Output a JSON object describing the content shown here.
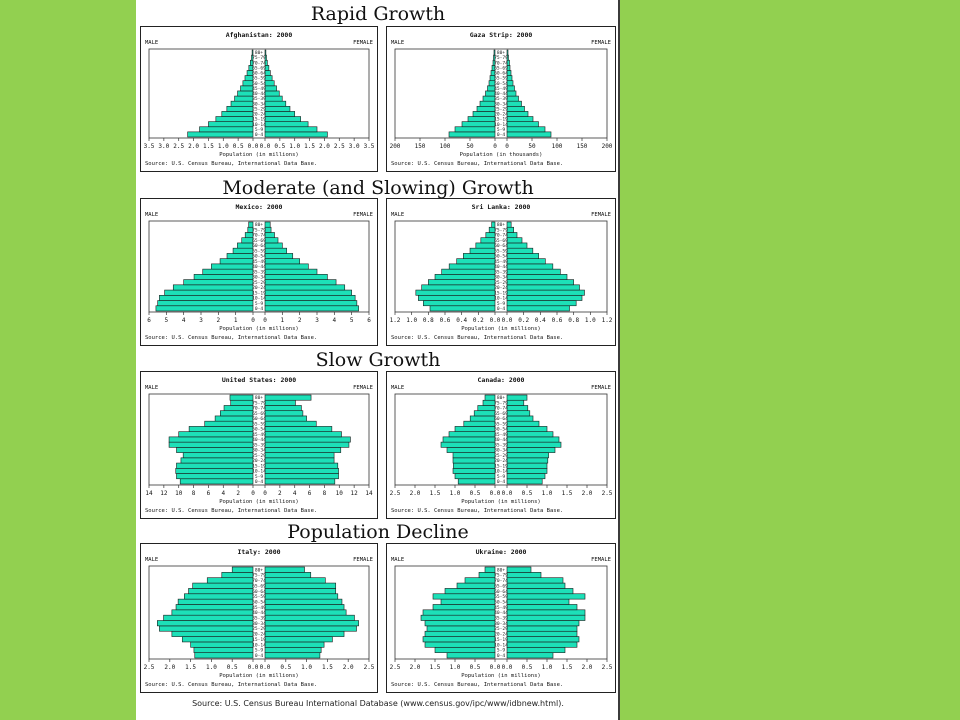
{
  "colors": {
    "background": "#92d050",
    "bar_fill": "#1de0b8",
    "bar_stroke": "#1a1a1a"
  },
  "sections": [
    {
      "title": "Rapid Growth"
    },
    {
      "title": "Moderate (and Slowing) Growth"
    },
    {
      "title": "Slow Growth"
    },
    {
      "title": "Population Decline"
    }
  ],
  "footer": {
    "source": "Source: U.S. Census Bureau International Database (www.census.gov/ipc/www/idbnew.html)."
  },
  "chart_data": [
    {
      "type": "bar",
      "title": "Afghanistan: 2000",
      "left_label": "MALE",
      "right_label": "FEMALE",
      "xlabel": "Population (in millions)",
      "source": "Source: U.S. Census Bureau, International Data Base.",
      "xlim": [
        0,
        3.5
      ],
      "ticks": [
        "3.5",
        "3.0",
        "2.5",
        "2.0",
        "1.5",
        "1.0",
        "0.5",
        "0.0",
        "0.0",
        "0.5",
        "1.0",
        "1.5",
        "2.0",
        "2.5",
        "3.0",
        "3.5"
      ],
      "tick_values": [
        3.5,
        3.0,
        2.5,
        2.0,
        1.5,
        1.0,
        0.5,
        0.0,
        0.0,
        0.5,
        1.0,
        1.5,
        2.0,
        2.5,
        3.0,
        3.5
      ],
      "categories": [
        "0-4",
        "5-9",
        "10-14",
        "15-19",
        "20-24",
        "25-29",
        "30-34",
        "35-39",
        "40-44",
        "45-49",
        "50-54",
        "55-59",
        "60-64",
        "65-69",
        "70-74",
        "75-79",
        "80+"
      ],
      "series": [
        {
          "name": "MALE",
          "values": [
            2.2,
            1.8,
            1.5,
            1.25,
            1.05,
            0.88,
            0.74,
            0.62,
            0.52,
            0.42,
            0.34,
            0.27,
            0.2,
            0.14,
            0.09,
            0.05,
            0.03
          ]
        },
        {
          "name": "FEMALE",
          "values": [
            2.1,
            1.75,
            1.45,
            1.2,
            1.0,
            0.84,
            0.7,
            0.58,
            0.48,
            0.39,
            0.31,
            0.24,
            0.18,
            0.13,
            0.08,
            0.05,
            0.03
          ]
        }
      ]
    },
    {
      "type": "bar",
      "title": "Gaza Strip: 2000",
      "left_label": "MALE",
      "right_label": "FEMALE",
      "xlabel": "Population (in thousands)",
      "source": "Source: U.S. Census Bureau, International Data Base.",
      "xlim": [
        0,
        200
      ],
      "ticks": [
        "200",
        "150",
        "100",
        "50",
        "0",
        "0",
        "50",
        "100",
        "150",
        "200"
      ],
      "tick_values": [
        200,
        150,
        100,
        50,
        0,
        0,
        50,
        100,
        150,
        200
      ],
      "categories": [
        "0-4",
        "5-9",
        "10-14",
        "15-19",
        "20-24",
        "25-29",
        "30-34",
        "35-39",
        "40-44",
        "45-49",
        "50-54",
        "55-59",
        "60-64",
        "65-69",
        "70-74",
        "75-79",
        "80+"
      ],
      "series": [
        {
          "name": "MALE",
          "values": [
            92,
            80,
            66,
            54,
            44,
            36,
            30,
            24,
            19,
            15,
            12,
            10,
            8,
            6,
            4,
            3,
            2
          ]
        },
        {
          "name": "FEMALE",
          "values": [
            88,
            76,
            63,
            52,
            42,
            35,
            29,
            23,
            18,
            15,
            12,
            10,
            8,
            6,
            5,
            3,
            2
          ]
        }
      ]
    },
    {
      "type": "bar",
      "title": "Mexico: 2000",
      "left_label": "MALE",
      "right_label": "FEMALE",
      "xlabel": "Population (in millions)",
      "source": "Source: U.S. Census Bureau, International Data Base.",
      "xlim": [
        0,
        6
      ],
      "ticks": [
        "6",
        "5",
        "4",
        "3",
        "2",
        "1",
        "0",
        "0",
        "1",
        "2",
        "3",
        "4",
        "5",
        "6"
      ],
      "tick_values": [
        6,
        5,
        4,
        3,
        2,
        1,
        0,
        0,
        1,
        2,
        3,
        4,
        5,
        6
      ],
      "categories": [
        "0-4",
        "5-9",
        "10-14",
        "15-19",
        "20-24",
        "25-29",
        "30-34",
        "35-39",
        "40-44",
        "45-49",
        "50-54",
        "55-59",
        "60-64",
        "65-69",
        "70-74",
        "75-79",
        "80+"
      ],
      "series": [
        {
          "name": "MALE",
          "values": [
            5.6,
            5.5,
            5.4,
            5.1,
            4.6,
            4.0,
            3.4,
            2.9,
            2.4,
            1.9,
            1.5,
            1.15,
            0.9,
            0.65,
            0.45,
            0.3,
            0.25
          ]
        },
        {
          "name": "FEMALE",
          "values": [
            5.4,
            5.3,
            5.2,
            5.0,
            4.6,
            4.1,
            3.6,
            3.0,
            2.5,
            2.0,
            1.6,
            1.25,
            1.0,
            0.75,
            0.55,
            0.35,
            0.3
          ]
        }
      ]
    },
    {
      "type": "bar",
      "title": "Sri Lanka: 2000",
      "left_label": "MALE",
      "right_label": "FEMALE",
      "xlabel": "Population (in millions)",
      "source": "Source: U.S. Census Bureau, International Data Base.",
      "xlim": [
        0,
        1.2
      ],
      "ticks": [
        "1.2",
        "1.0",
        "0.8",
        "0.6",
        "0.4",
        "0.2",
        "0.0",
        "0.0",
        "0.2",
        "0.4",
        "0.6",
        "0.8",
        "1.0",
        "1.2"
      ],
      "tick_values": [
        1.2,
        1.0,
        0.8,
        0.6,
        0.4,
        0.2,
        0.0,
        0.0,
        0.2,
        0.4,
        0.6,
        0.8,
        1.0,
        1.2
      ],
      "categories": [
        "0-4",
        "5-9",
        "10-14",
        "15-19",
        "20-24",
        "25-29",
        "30-34",
        "35-39",
        "40-44",
        "45-49",
        "50-54",
        "55-59",
        "60-64",
        "65-69",
        "70-74",
        "75-79",
        "80+"
      ],
      "series": [
        {
          "name": "MALE",
          "values": [
            0.78,
            0.86,
            0.92,
            0.95,
            0.88,
            0.8,
            0.72,
            0.64,
            0.55,
            0.46,
            0.38,
            0.3,
            0.23,
            0.17,
            0.11,
            0.07,
            0.04
          ]
        },
        {
          "name": "FEMALE",
          "values": [
            0.75,
            0.83,
            0.9,
            0.93,
            0.87,
            0.8,
            0.72,
            0.64,
            0.55,
            0.46,
            0.38,
            0.31,
            0.24,
            0.18,
            0.12,
            0.08,
            0.05
          ]
        }
      ]
    },
    {
      "type": "bar",
      "title": "United States: 2000",
      "left_label": "MALE",
      "right_label": "FEMALE",
      "xlabel": "Population (in millions)",
      "source": "Source: U.S. Census Bureau, International Data Base.",
      "xlim": [
        0,
        14
      ],
      "ticks": [
        "14",
        "12",
        "10",
        "8",
        "6",
        "4",
        "2",
        "0",
        "0",
        "2",
        "4",
        "6",
        "8",
        "10",
        "12",
        "14"
      ],
      "tick_values": [
        14,
        12,
        10,
        8,
        6,
        4,
        2,
        0,
        0,
        2,
        4,
        6,
        8,
        10,
        12,
        14
      ],
      "categories": [
        "0-4",
        "5-9",
        "10-14",
        "15-19",
        "20-24",
        "25-29",
        "30-34",
        "35-39",
        "40-44",
        "45-49",
        "50-54",
        "55-59",
        "60-64",
        "65-69",
        "70-74",
        "75-79",
        "80+"
      ],
      "series": [
        {
          "name": "MALE",
          "values": [
            9.8,
            10.3,
            10.4,
            10.3,
            9.7,
            9.4,
            10.3,
            11.3,
            11.3,
            10.0,
            8.6,
            6.5,
            5.1,
            4.4,
            3.9,
            3.0,
            3.1
          ]
        },
        {
          "name": "FEMALE",
          "values": [
            9.4,
            9.9,
            9.9,
            9.8,
            9.3,
            9.3,
            10.2,
            11.3,
            11.5,
            10.3,
            9.0,
            6.9,
            5.6,
            5.1,
            4.9,
            4.1,
            6.2
          ]
        }
      ]
    },
    {
      "type": "bar",
      "title": "Canada: 2000",
      "left_label": "MALE",
      "right_label": "FEMALE",
      "xlabel": "Population (in millions)",
      "source": "Source: U.S. Census Bureau, International Data Base.",
      "xlim": [
        0,
        2.5
      ],
      "ticks": [
        "2.5",
        "2.0",
        "1.5",
        "1.0",
        "0.5",
        "0.0",
        "0.0",
        "0.5",
        "1.0",
        "1.5",
        "2.0",
        "2.5"
      ],
      "tick_values": [
        2.5,
        2.0,
        1.5,
        1.0,
        0.5,
        0.0,
        0.0,
        0.5,
        1.0,
        1.5,
        2.0,
        2.5
      ],
      "categories": [
        "0-4",
        "5-9",
        "10-14",
        "15-19",
        "20-24",
        "25-29",
        "30-34",
        "35-39",
        "40-44",
        "45-49",
        "50-54",
        "55-59",
        "60-64",
        "65-69",
        "70-74",
        "75-79",
        "80+"
      ],
      "series": [
        {
          "name": "MALE",
          "values": [
            0.92,
            1.0,
            1.05,
            1.04,
            1.05,
            1.05,
            1.2,
            1.35,
            1.3,
            1.15,
            1.0,
            0.78,
            0.62,
            0.52,
            0.43,
            0.3,
            0.25
          ]
        },
        {
          "name": "FEMALE",
          "values": [
            0.88,
            0.95,
            1.0,
            1.0,
            1.02,
            1.04,
            1.2,
            1.35,
            1.3,
            1.15,
            1.0,
            0.8,
            0.65,
            0.57,
            0.52,
            0.42,
            0.5
          ]
        }
      ]
    },
    {
      "type": "bar",
      "title": "Italy: 2000",
      "left_label": "MALE",
      "right_label": "FEMALE",
      "xlabel": "Population (in millions)",
      "source": "Source: U.S. Census Bureau, International Data Base.",
      "xlim": [
        0,
        2.5
      ],
      "ticks": [
        "2.5",
        "2.0",
        "1.5",
        "1.0",
        "0.5",
        "0.0",
        "0.0",
        "0.5",
        "1.0",
        "1.5",
        "2.0",
        "2.5"
      ],
      "tick_values": [
        2.5,
        2.0,
        1.5,
        1.0,
        0.5,
        0.0,
        0.0,
        0.5,
        1.0,
        1.5,
        2.0,
        2.5
      ],
      "categories": [
        "0-4",
        "5-9",
        "10-14",
        "15-19",
        "20-24",
        "25-29",
        "30-34",
        "35-39",
        "40-44",
        "45-49",
        "50-54",
        "55-59",
        "60-64",
        "65-69",
        "70-74",
        "75-79",
        "80+"
      ],
      "series": [
        {
          "name": "MALE",
          "values": [
            1.4,
            1.42,
            1.5,
            1.7,
            1.95,
            2.25,
            2.3,
            2.15,
            1.95,
            1.85,
            1.8,
            1.65,
            1.55,
            1.45,
            1.1,
            0.75,
            0.5
          ]
        },
        {
          "name": "FEMALE",
          "values": [
            1.32,
            1.35,
            1.42,
            1.62,
            1.9,
            2.2,
            2.25,
            2.15,
            1.95,
            1.9,
            1.85,
            1.75,
            1.7,
            1.7,
            1.45,
            1.1,
            0.95
          ]
        }
      ]
    },
    {
      "type": "bar",
      "title": "Ukraine: 2000",
      "left_label": "MALE",
      "right_label": "FEMALE",
      "xlabel": "Population (in millions)",
      "source": "Source: U.S. Census Bureau, International Data Base.",
      "xlim": [
        0,
        2.5
      ],
      "ticks": [
        "2.5",
        "2.0",
        "1.5",
        "1.0",
        "0.5",
        "0.0",
        "0.0",
        "0.5",
        "1.0",
        "1.5",
        "2.0",
        "2.5"
      ],
      "tick_values": [
        2.5,
        2.0,
        1.5,
        1.0,
        0.5,
        0.0,
        0.0,
        0.5,
        1.0,
        1.5,
        2.0,
        2.5
      ],
      "categories": [
        "0-4",
        "5-9",
        "10-14",
        "15-19",
        "20-24",
        "25-29",
        "30-34",
        "35-39",
        "40-44",
        "45-49",
        "50-54",
        "55-59",
        "60-64",
        "65-69",
        "70-74",
        "75-79",
        "80+"
      ],
      "series": [
        {
          "name": "MALE",
          "values": [
            1.2,
            1.5,
            1.75,
            1.8,
            1.75,
            1.7,
            1.75,
            1.85,
            1.8,
            1.55,
            1.35,
            1.55,
            1.25,
            0.95,
            0.75,
            0.4,
            0.25
          ]
        },
        {
          "name": "FEMALE",
          "values": [
            1.15,
            1.45,
            1.75,
            1.8,
            1.75,
            1.75,
            1.8,
            1.95,
            1.95,
            1.75,
            1.55,
            1.95,
            1.65,
            1.45,
            1.4,
            0.85,
            0.6
          ]
        }
      ]
    }
  ]
}
